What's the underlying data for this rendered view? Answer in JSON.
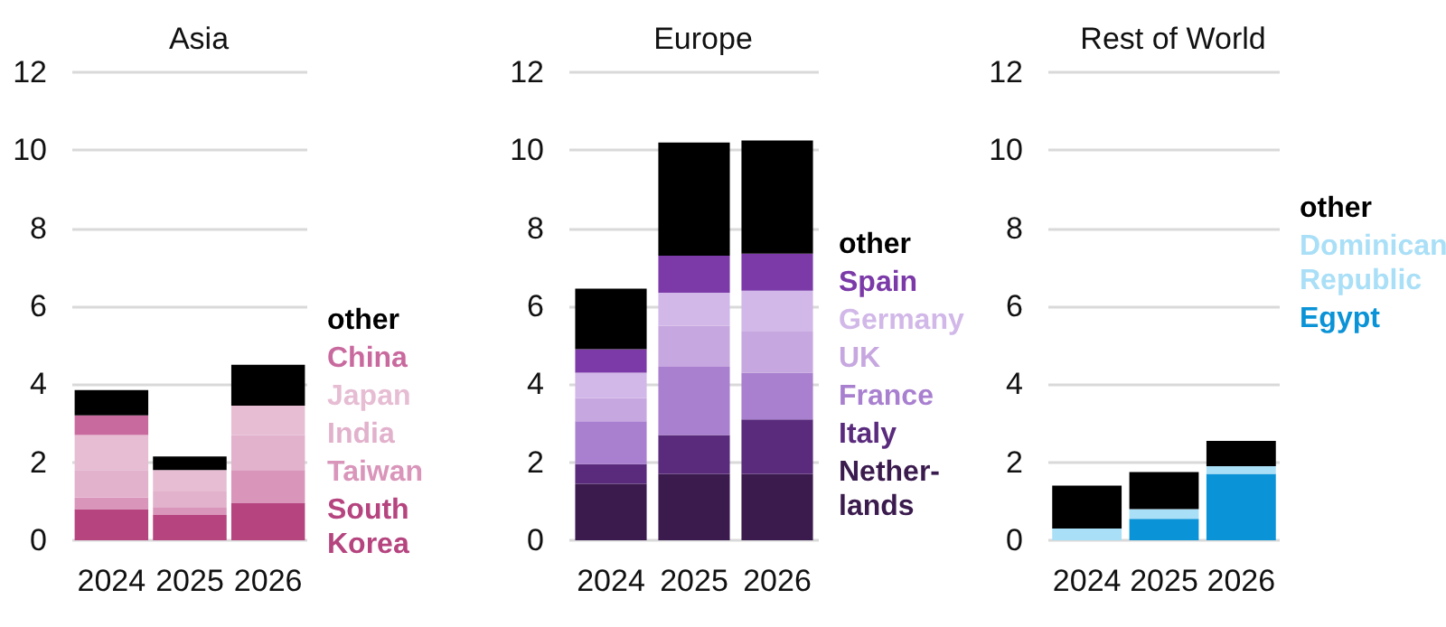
{
  "chart_data": [
    {
      "type": "bar",
      "title": "Asia",
      "categories": [
        "2024",
        "2025",
        "2026"
      ],
      "stacked": true,
      "ylim": [
        0,
        12
      ],
      "yticks": [
        0,
        2,
        4,
        6,
        8,
        10,
        12
      ],
      "grid": "y",
      "legend": "right",
      "series": [
        {
          "name": "South\nKorea",
          "color": "#b5447f",
          "values": [
            0.8,
            0.65,
            0.95
          ]
        },
        {
          "name": "Taiwan",
          "color": "#d995ba",
          "values": [
            0.3,
            0.2,
            0.85
          ]
        },
        {
          "name": "India",
          "color": "#e2b1cc",
          "values": [
            0.7,
            0.4,
            0.9
          ]
        },
        {
          "name": "Japan",
          "color": "#e6bdd3",
          "values": [
            0.9,
            0.55,
            0.75
          ]
        },
        {
          "name": "China",
          "color": "#c96a9f",
          "values": [
            0.5,
            0,
            0
          ]
        },
        {
          "name": "other",
          "color": "#000000",
          "values": [
            0.65,
            0.35,
            1.05
          ]
        }
      ]
    },
    {
      "type": "bar",
      "title": "Europe",
      "categories": [
        "2024",
        "2025",
        "2026"
      ],
      "stacked": true,
      "ylim": [
        0,
        12
      ],
      "yticks": [
        0,
        2,
        4,
        6,
        8,
        10,
        12
      ],
      "grid": "y",
      "legend": "right",
      "series": [
        {
          "name": "Nether-\nlands",
          "color": "#3b1b4e",
          "values": [
            1.45,
            1.7,
            1.7
          ]
        },
        {
          "name": "Italy",
          "color": "#5a2b7d",
          "values": [
            0.5,
            1.0,
            1.4
          ]
        },
        {
          "name": "France",
          "color": "#a980d0",
          "values": [
            1.1,
            1.75,
            1.2
          ]
        },
        {
          "name": "UK",
          "color": "#c7a7e0",
          "values": [
            0.6,
            1.05,
            1.05
          ]
        },
        {
          "name": "Germany",
          "color": "#d1b8e8",
          "values": [
            0.65,
            0.85,
            1.05
          ]
        },
        {
          "name": "Spain",
          "color": "#7b3aa8",
          "values": [
            0.6,
            0.95,
            0.95
          ]
        },
        {
          "name": "other",
          "color": "#000000",
          "values": [
            1.55,
            2.9,
            2.9
          ]
        }
      ]
    },
    {
      "type": "bar",
      "title": "Rest of World",
      "categories": [
        "2024",
        "2025",
        "2026"
      ],
      "stacked": true,
      "ylim": [
        0,
        12
      ],
      "yticks": [
        0,
        2,
        4,
        6,
        8,
        10,
        12
      ],
      "grid": "y",
      "legend": "right",
      "series": [
        {
          "name": "Egypt",
          "color": "#0a93d6",
          "values": [
            0,
            0.55,
            1.7
          ]
        },
        {
          "name": "Dominican\nRepublic",
          "color": "#a9dff7",
          "values": [
            0.3,
            0.25,
            0.2
          ]
        },
        {
          "name": "other",
          "color": "#000000",
          "values": [
            1.1,
            0.95,
            0.65
          ]
        }
      ]
    }
  ]
}
